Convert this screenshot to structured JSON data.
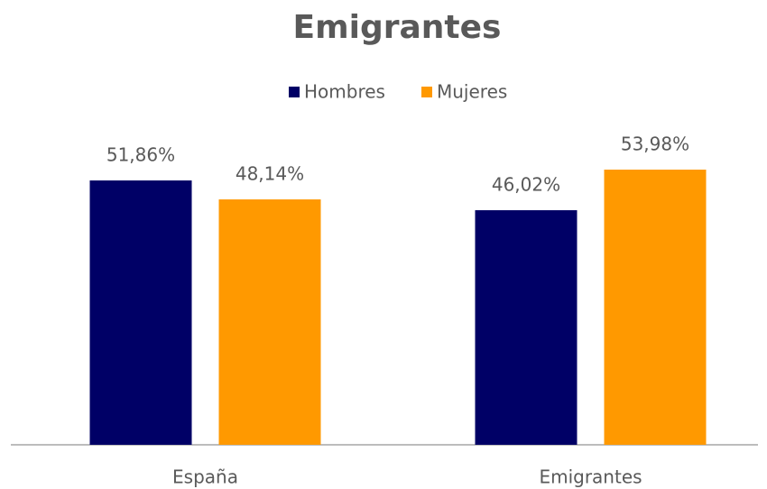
{
  "chart_data": {
    "type": "bar",
    "title": "Emigrantes",
    "categories": [
      "España",
      "Emigrantes"
    ],
    "series": [
      {
        "name": "Hombres",
        "color": "#000066",
        "values": [
          51.86,
          46.02
        ],
        "value_labels": [
          "51,86%",
          "46,02%"
        ]
      },
      {
        "name": "Mujeres",
        "color": "#ff9900",
        "values": [
          48.14,
          53.98
        ],
        "value_labels": [
          "48,14%",
          "53,98%"
        ]
      }
    ],
    "ylim": [
      0,
      60
    ],
    "legend": "top"
  }
}
